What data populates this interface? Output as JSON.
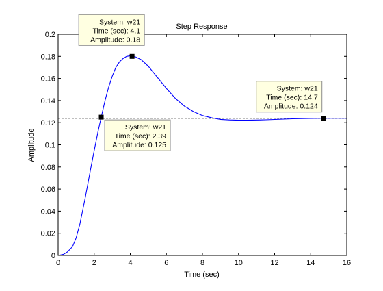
{
  "chart_data": {
    "type": "line",
    "title": "Step Response",
    "xlabel": "Time (sec)",
    "ylabel": "Amplitude",
    "xlim": [
      0,
      16
    ],
    "ylim": [
      0,
      0.2
    ],
    "xticks": [
      0,
      2,
      4,
      6,
      8,
      10,
      12,
      14,
      16
    ],
    "yticks": [
      0,
      0.02,
      0.04,
      0.06,
      0.08,
      0.1,
      0.12,
      0.14,
      0.16,
      0.18,
      0.2
    ],
    "grid": false,
    "series": [
      {
        "color": "#0000ff",
        "x": [
          0,
          0.3,
          0.5,
          0.8,
          1.0,
          1.2,
          1.5,
          1.8,
          2.0,
          2.2,
          2.39,
          2.6,
          2.8,
          3.0,
          3.2,
          3.4,
          3.6,
          3.8,
          4.0,
          4.1,
          4.3,
          4.6,
          5.0,
          5.5,
          6.0,
          6.5,
          7.0,
          7.5,
          8.0,
          8.5,
          9.0,
          9.5,
          10.0,
          10.5,
          11.0,
          11.5,
          12.0,
          12.5,
          13.0,
          13.5,
          14.0,
          14.7,
          15.5,
          16.0
        ],
        "y": [
          0,
          0.001,
          0.003,
          0.008,
          0.016,
          0.028,
          0.052,
          0.078,
          0.095,
          0.111,
          0.125,
          0.14,
          0.152,
          0.162,
          0.17,
          0.175,
          0.178,
          0.18,
          0.1805,
          0.18,
          0.1795,
          0.177,
          0.171,
          0.161,
          0.151,
          0.142,
          0.135,
          0.13,
          0.1265,
          0.1245,
          0.123,
          0.1225,
          0.1222,
          0.1222,
          0.1224,
          0.1226,
          0.1229,
          0.1232,
          0.1235,
          0.1237,
          0.1239,
          0.124,
          0.124,
          0.124
        ]
      }
    ],
    "reference_line": {
      "y": 0.124,
      "style": "dashed",
      "color": "#000000"
    },
    "annotations": [
      {
        "x": 4.1,
        "y": 0.18,
        "lines": [
          "System: w21",
          "Time (sec): 4.1",
          "Amplitude: 0.18"
        ],
        "placement": "above-left"
      },
      {
        "x": 2.39,
        "y": 0.125,
        "lines": [
          "System: w21",
          "Time (sec): 2.39",
          "Amplitude: 0.125"
        ],
        "placement": "below-right"
      },
      {
        "x": 14.7,
        "y": 0.124,
        "lines": [
          "System: w21",
          "Time (sec): 14.7",
          "Amplitude: 0.124"
        ],
        "placement": "above-left"
      }
    ],
    "colors": {
      "annotation_bg": "#ffffe1",
      "axes": "#000000"
    }
  }
}
